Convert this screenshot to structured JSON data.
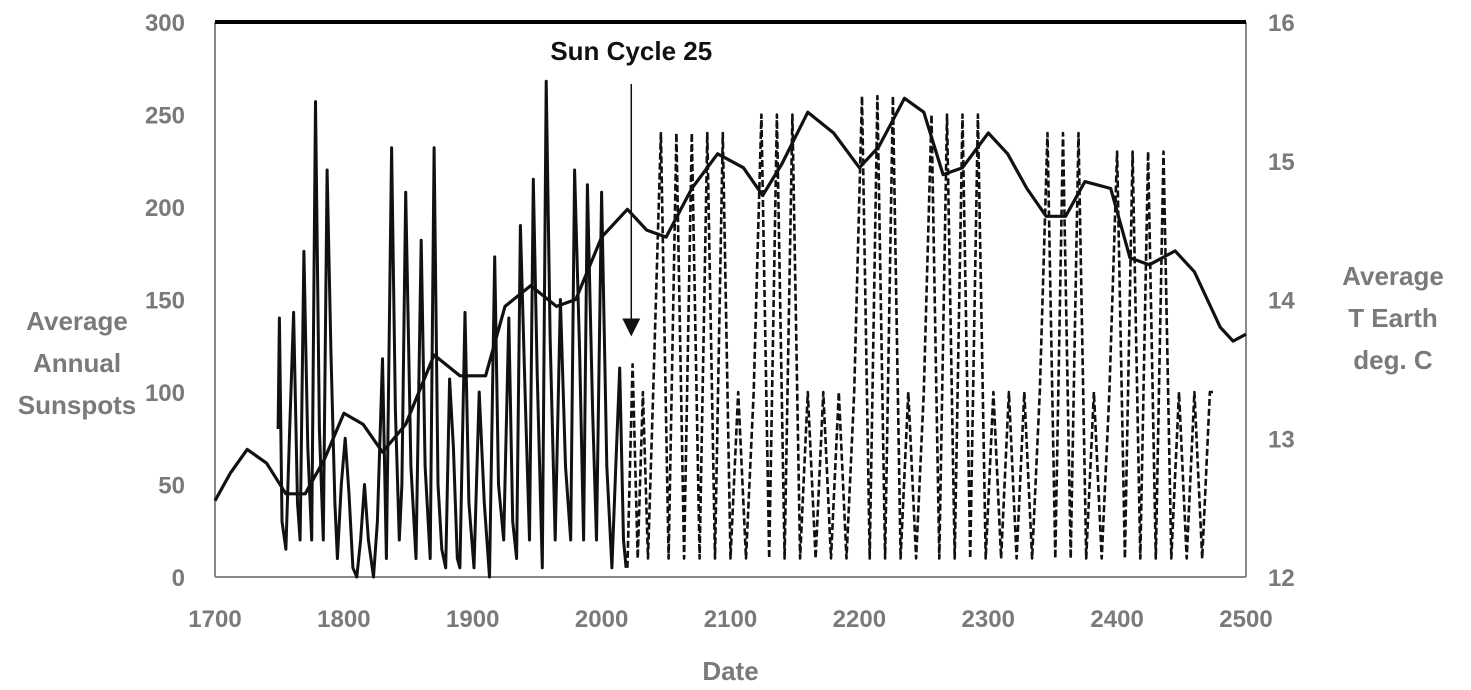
{
  "chart_data": {
    "type": "line",
    "xlabel": "Date",
    "ylabel_left": [
      "Average",
      "Annual",
      "Sunspots"
    ],
    "ylabel_right": [
      "Average",
      "T Earth",
      "deg. C"
    ],
    "xlim": [
      1700,
      2500
    ],
    "ylim_left": [
      0,
      300
    ],
    "ylim_right": [
      12,
      16
    ],
    "x_ticks": [
      "1700",
      "1800",
      "1900",
      "2000",
      "2100",
      "2200",
      "2300",
      "2400",
      "2500"
    ],
    "y_left_ticks": [
      "0",
      "50",
      "100",
      "150",
      "200",
      "250",
      "300"
    ],
    "y_right_ticks": [
      "12",
      "13",
      "14",
      "15",
      "16"
    ],
    "grid": false,
    "legend": "none",
    "annotation": {
      "text": "Sun Cycle 25",
      "x": 2023,
      "y": 130
    },
    "colors": {
      "line": "#111111",
      "text": "#7a7a7a",
      "frame": "#888888"
    },
    "series": [
      {
        "axis": "left",
        "style": "solid",
        "x": [
          1749,
          1750,
          1752,
          1755,
          1758,
          1761,
          1764,
          1766,
          1769,
          1772,
          1775,
          1778,
          1781,
          1784,
          1787,
          1790,
          1793,
          1795,
          1798,
          1801,
          1804,
          1807,
          1810,
          1813,
          1816,
          1819,
          1823,
          1826,
          1830,
          1833,
          1837,
          1840,
          1843,
          1845,
          1848,
          1852,
          1856,
          1860,
          1863,
          1867,
          1870,
          1873,
          1876,
          1879,
          1882,
          1885,
          1888,
          1890,
          1894,
          1897,
          1901,
          1905,
          1909,
          1913,
          1917,
          1920,
          1924,
          1928,
          1931,
          1934,
          1937,
          1941,
          1944,
          1947,
          1950,
          1954,
          1957,
          1960,
          1964,
          1968,
          1972,
          1976,
          1979,
          1983,
          1986,
          1989,
          1993,
          1996,
          2000,
          2004,
          2008,
          2011,
          2014,
          2017,
          2019
        ],
        "values": [
          80,
          140,
          30,
          15,
          80,
          143,
          40,
          20,
          176,
          70,
          20,
          257,
          80,
          20,
          220,
          120,
          40,
          10,
          50,
          75,
          45,
          5,
          0,
          20,
          50,
          20,
          0,
          30,
          118,
          10,
          232,
          90,
          20,
          50,
          208,
          60,
          10,
          182,
          60,
          10,
          232,
          50,
          15,
          5,
          107,
          70,
          10,
          5,
          143,
          40,
          5,
          100,
          40,
          0,
          173,
          50,
          20,
          140,
          30,
          10,
          190,
          90,
          20,
          215,
          110,
          5,
          268,
          130,
          20,
          150,
          60,
          20,
          220,
          120,
          20,
          212,
          90,
          20,
          208,
          60,
          5,
          60,
          113,
          20,
          5
        ]
      },
      {
        "axis": "left",
        "style": "dashed",
        "x": [
          2020,
          2024,
          2028,
          2032,
          2036,
          2040,
          2046,
          2052,
          2058,
          2064,
          2070,
          2076,
          2082,
          2088,
          2094,
          2100,
          2106,
          2112,
          2118,
          2124,
          2130,
          2136,
          2142,
          2148,
          2154,
          2160,
          2166,
          2172,
          2178,
          2184,
          2190,
          2196,
          2202,
          2208,
          2214,
          2220,
          2226,
          2232,
          2238,
          2244,
          2250,
          2256,
          2262,
          2268,
          2274,
          2280,
          2286,
          2292,
          2298,
          2304,
          2310,
          2316,
          2322,
          2328,
          2334,
          2340,
          2346,
          2352,
          2358,
          2364,
          2370,
          2376,
          2382,
          2388,
          2394,
          2400,
          2406,
          2412,
          2418,
          2424,
          2430,
          2436,
          2442,
          2448,
          2454,
          2460,
          2466,
          2472,
          2476
        ],
        "values": [
          5,
          115,
          10,
          100,
          10,
          100,
          240,
          10,
          240,
          10,
          240,
          10,
          240,
          10,
          240,
          10,
          100,
          10,
          100,
          250,
          10,
          250,
          10,
          250,
          10,
          100,
          10,
          100,
          10,
          100,
          10,
          100,
          260,
          10,
          260,
          10,
          260,
          10,
          100,
          10,
          100,
          250,
          10,
          250,
          10,
          250,
          10,
          250,
          10,
          100,
          10,
          100,
          10,
          100,
          10,
          100,
          240,
          10,
          240,
          10,
          240,
          10,
          100,
          10,
          100,
          230,
          10,
          230,
          10,
          230,
          10,
          230,
          10,
          100,
          10,
          100,
          10,
          100,
          100
        ]
      },
      {
        "axis": "right",
        "style": "solid",
        "x": [
          1700,
          1712,
          1725,
          1740,
          1755,
          1770,
          1785,
          1800,
          1815,
          1830,
          1848,
          1870,
          1890,
          1910,
          1925,
          1945,
          1965,
          1980,
          2000,
          2020,
          2035,
          2050,
          2070,
          2090,
          2110,
          2125,
          2140,
          2160,
          2180,
          2200,
          2215,
          2235,
          2250,
          2265,
          2280,
          2300,
          2315,
          2330,
          2345,
          2360,
          2375,
          2395,
          2410,
          2425,
          2445,
          2460,
          2470,
          2480,
          2490,
          2500
        ],
        "values": [
          12.55,
          12.75,
          12.92,
          12.82,
          12.6,
          12.6,
          12.85,
          13.18,
          13.1,
          12.9,
          13.1,
          13.6,
          13.45,
          13.45,
          13.95,
          14.1,
          13.95,
          14.0,
          14.45,
          14.65,
          14.5,
          14.45,
          14.8,
          15.05,
          14.95,
          14.75,
          14.98,
          15.35,
          15.2,
          14.95,
          15.1,
          15.45,
          15.35,
          14.9,
          14.95,
          15.2,
          15.05,
          14.8,
          14.6,
          14.6,
          14.85,
          14.8,
          14.3,
          14.25,
          14.35,
          14.2,
          14.0,
          13.8,
          13.7,
          13.75
        ]
      }
    ]
  }
}
